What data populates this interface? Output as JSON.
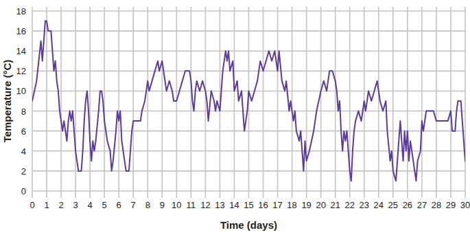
{
  "chart_data": {
    "type": "line",
    "x_label": "Time (days)",
    "y_label": "Temperature (°C)",
    "color": "#5b3c9c",
    "grid": true,
    "xlim": [
      0,
      30
    ],
    "ylim": [
      0,
      18
    ],
    "xticks": [
      0,
      1,
      2,
      3,
      4,
      5,
      6,
      7,
      8,
      9,
      10,
      11,
      12,
      13,
      14,
      15,
      16,
      17,
      18,
      19,
      20,
      21,
      22,
      23,
      24,
      25,
      26,
      27,
      28,
      29,
      30
    ],
    "yticks": [
      0,
      2,
      4,
      6,
      8,
      10,
      12,
      14,
      16,
      18
    ],
    "x": [
      0,
      0.3,
      0.6,
      0.7,
      0.8,
      0.9,
      1.0,
      1.1,
      1.3,
      1.4,
      1.5,
      1.6,
      1.7,
      1.8,
      1.9,
      2.0,
      2.1,
      2.2,
      2.4,
      2.5,
      2.6,
      2.7,
      2.8,
      2.9,
      3.0,
      3.1,
      3.2,
      3.4,
      3.5,
      3.6,
      3.7,
      3.8,
      3.9,
      4.0,
      4.1,
      4.2,
      4.3,
      4.4,
      4.6,
      4.7,
      4.8,
      4.9,
      5.0,
      5.1,
      5.2,
      5.4,
      5.5,
      5.6,
      5.8,
      5.9,
      6.0,
      6.1,
      6.2,
      6.4,
      6.5,
      6.7,
      6.8,
      6.9,
      7.0,
      7.5,
      7.6,
      7.8,
      7.9,
      8.0,
      8.1,
      8.3,
      8.5,
      8.7,
      8.8,
      9.0,
      9.1,
      9.2,
      9.3,
      9.5,
      9.7,
      9.8,
      10.0,
      10.2,
      10.4,
      10.6,
      10.9,
      11.0,
      11.1,
      11.2,
      11.3,
      11.4,
      11.6,
      11.8,
      12.0,
      12.1,
      12.2,
      12.4,
      12.6,
      12.7,
      12.8,
      13.0,
      13.1,
      13.2,
      13.4,
      13.5,
      13.6,
      13.7,
      13.9,
      14.0,
      14.2,
      14.3,
      14.5,
      14.6,
      14.7,
      14.9,
      15.0,
      15.2,
      15.4,
      15.6,
      15.8,
      16.0,
      16.2,
      16.4,
      16.6,
      16.8,
      17.0,
      17.1,
      17.3,
      17.5,
      17.6,
      17.8,
      17.9,
      18.1,
      18.2,
      18.3,
      18.5,
      18.6,
      18.8,
      18.9,
      19.0,
      19.2,
      19.5,
      19.7,
      20.0,
      20.2,
      20.4,
      20.6,
      20.8,
      21.0,
      21.1,
      21.2,
      21.3,
      21.4,
      21.5,
      21.6,
      21.7,
      21.8,
      21.9,
      22.0,
      22.1,
      22.2,
      22.3,
      22.4,
      22.6,
      22.8,
      23.0,
      23.1,
      23.3,
      23.5,
      23.7,
      23.9,
      24.1,
      24.3,
      24.5,
      24.6,
      24.8,
      24.9,
      25.0,
      25.2,
      25.3,
      25.5,
      25.6,
      25.7,
      25.8,
      25.9,
      26.0,
      26.1,
      26.2,
      26.3,
      26.5,
      26.6,
      26.7,
      26.9,
      27.0,
      27.1,
      27.3,
      27.8,
      28.0,
      28.8,
      29.0,
      29.1,
      29.3,
      29.4,
      29.5,
      29.7,
      29.8,
      29.9,
      30.0
    ],
    "values": [
      9,
      11,
      15,
      13,
      15,
      17,
      17,
      16,
      16,
      14,
      12,
      13,
      11,
      10,
      8,
      7,
      6,
      7,
      5,
      7,
      8,
      7,
      8,
      6,
      4,
      3,
      2,
      2,
      4,
      7,
      9,
      10,
      8,
      5,
      3,
      5,
      4,
      5,
      8,
      10,
      10,
      9,
      7,
      6,
      5,
      4,
      2,
      3,
      6,
      8,
      7,
      8,
      5,
      3,
      2,
      2,
      4,
      6,
      7,
      7,
      8,
      9,
      10,
      11,
      10,
      11,
      12,
      13,
      12,
      13,
      12,
      11,
      10,
      11,
      10,
      9,
      9,
      10,
      11,
      12,
      12,
      11,
      9,
      8,
      10,
      11,
      10,
      11,
      10,
      9,
      7,
      10,
      9,
      8,
      9,
      8,
      10,
      12,
      14,
      13,
      14,
      12,
      13,
      10,
      11,
      9,
      10,
      8,
      6,
      8,
      10,
      9,
      10,
      11,
      13,
      12,
      13,
      14,
      13,
      14,
      12,
      14,
      11,
      10,
      11,
      8,
      9,
      7,
      8,
      6,
      5,
      6,
      2,
      5,
      3,
      4,
      6,
      8,
      10,
      11,
      10,
      12,
      12,
      11,
      10,
      8,
      9,
      6,
      4,
      6,
      5,
      6,
      4,
      2,
      1,
      4,
      6,
      7,
      8,
      7,
      9,
      8,
      10,
      9,
      10,
      11,
      9,
      8,
      9,
      6,
      3,
      4,
      2,
      1,
      3,
      7,
      5,
      3,
      6,
      4,
      6,
      3,
      5,
      4,
      2,
      1,
      3,
      4,
      7,
      6,
      8,
      8,
      7,
      7,
      8,
      6,
      6,
      8,
      9,
      9,
      7,
      5,
      3
    ]
  }
}
